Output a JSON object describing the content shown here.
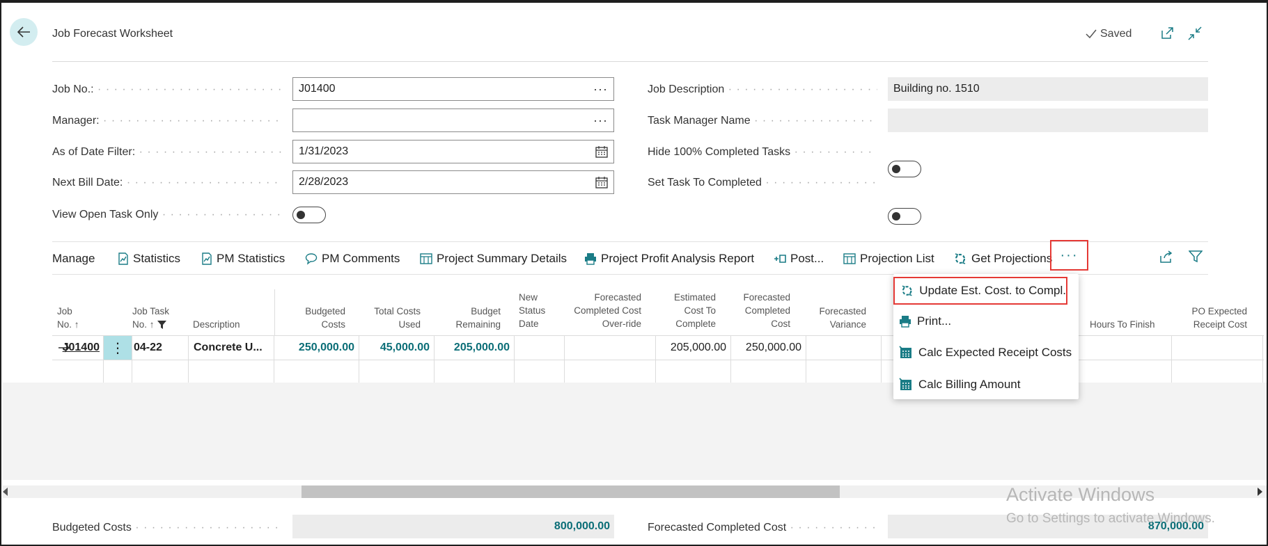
{
  "header": {
    "title": "Job Forecast Worksheet",
    "saved_label": "Saved"
  },
  "fields": {
    "job_no": {
      "label": "Job No.:",
      "value": "J01400"
    },
    "manager": {
      "label": "Manager:",
      "value": ""
    },
    "as_of_date": {
      "label": "As of Date Filter:",
      "value": "1/31/2023"
    },
    "next_bill_date": {
      "label": "Next Bill Date:",
      "value": "2/28/2023"
    },
    "view_open_task": {
      "label": "View Open Task Only"
    },
    "job_description": {
      "label": "Job Description",
      "value": "Building no. 1510"
    },
    "task_manager_name": {
      "label": "Task Manager Name",
      "value": ""
    },
    "hide_completed": {
      "label": "Hide 100% Completed Tasks"
    },
    "set_task_completed": {
      "label": "Set Task To Completed"
    }
  },
  "actions": {
    "manage": "Manage",
    "statistics": "Statistics",
    "pm_statistics": "PM Statistics",
    "pm_comments": "PM Comments",
    "project_summary": "Project Summary Details",
    "project_profit": "Project Profit Analysis Report",
    "post": "Post...",
    "projection_list": "Projection List",
    "get_projections": "Get Projections",
    "more": "···"
  },
  "menu": {
    "update_est": "Update Est. Cost. to Compl.",
    "print": "Print...",
    "calc_expected": "Calc Expected Receipt Costs",
    "calc_billing": "Calc Billing Amount"
  },
  "columns": {
    "job_no": [
      "Job",
      "No. ↑"
    ],
    "job_task_no": [
      "Job Task",
      "No. ↑"
    ],
    "description": "Description",
    "budgeted_costs": [
      "Budgeted",
      "Costs"
    ],
    "total_costs_used": [
      "Total Costs",
      "Used"
    ],
    "budget_remaining": [
      "Budget",
      "Remaining"
    ],
    "new_status_date": [
      "New",
      "Status",
      "Date"
    ],
    "fcc_override": [
      "Forecasted",
      "Completed Cost",
      "Over-ride"
    ],
    "est_cost_to_complete": [
      "Estimated",
      "Cost To",
      "Complete"
    ],
    "forecasted_completed_cost": [
      "Forecasted",
      "Completed",
      "Cost"
    ],
    "forecasted_variance": [
      "Forecasted",
      "Variance"
    ],
    "hours_to_finish": "Hours To Finish",
    "po_expected": [
      "PO Expected",
      "Receipt Cost"
    ]
  },
  "rows": [
    {
      "job_no": "J01400",
      "job_task_no": "04-22",
      "description": "Concrete U...",
      "budgeted_costs": "250,000.00",
      "total_costs_used": "45,000.00",
      "budget_remaining": "205,000.00",
      "est_cost_to_complete": "205,000.00",
      "forecasted_completed_cost": "250,000.00"
    }
  ],
  "totals": {
    "budgeted_costs": {
      "label": "Budgeted Costs",
      "value": "800,000.00"
    },
    "forecasted_completed_cost": {
      "label": "Forecasted Completed Cost",
      "value": "870,000.00"
    }
  },
  "watermark": {
    "line1": "Activate Windows",
    "line2": "Go to Settings to activate Windows."
  },
  "colors": {
    "accent": "#0b6e77",
    "highlight": "#e53935",
    "selected_cell": "#aee0e6"
  }
}
